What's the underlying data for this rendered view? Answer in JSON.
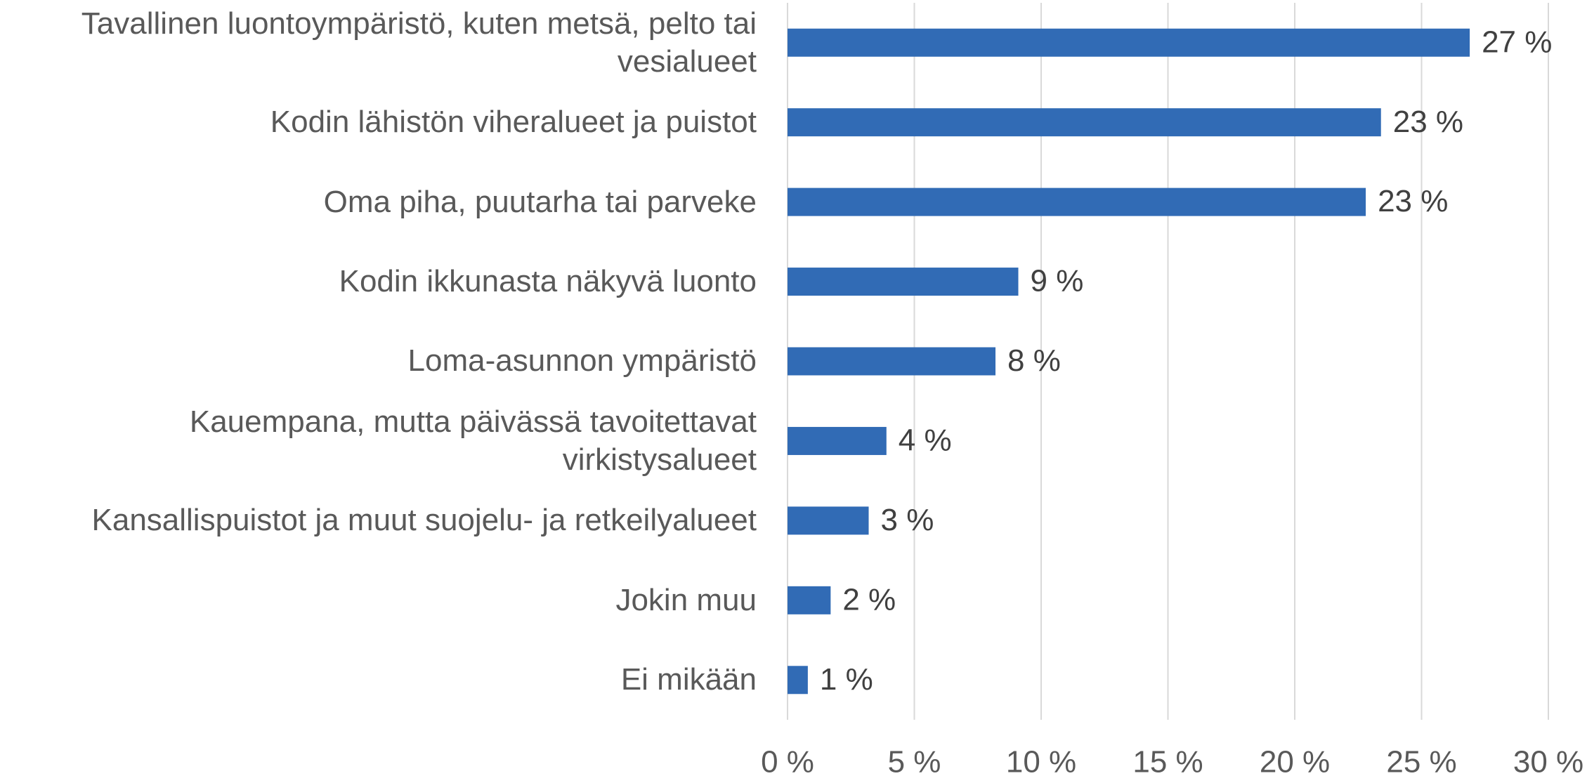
{
  "chart_data": {
    "type": "hbar",
    "categories": [
      "Tavallinen luontoympäristö, kuten metsä, pelto tai vesialueet",
      "Kodin lähistön viheralueet ja puistot",
      "Oma piha, puutarha tai parveke",
      "Kodin ikkunasta näkyvä luonto",
      "Loma-asunnon ympäristö",
      "Kauempana, mutta päivässä tavoitettavat virkistysalueet",
      "Kansallispuistot ja muut suojelu- ja retkeilyalueet",
      "Jokin muu",
      "Ei mikään"
    ],
    "values": [
      26.9,
      23.4,
      22.8,
      9.1,
      8.2,
      3.9,
      3.2,
      1.7,
      0.8
    ],
    "value_labels": [
      "27 %",
      "23 %",
      "23 %",
      "9 %",
      "8 %",
      "4 %",
      "3 %",
      "2 %",
      "1 %"
    ],
    "color": "#316bb5",
    "xlim": [
      0,
      30
    ],
    "xticks": [
      {
        "value": 0,
        "label": "0 %"
      },
      {
        "value": 5,
        "label": "5 %"
      },
      {
        "value": 10,
        "label": "10 %"
      },
      {
        "value": 15,
        "label": "15 %"
      },
      {
        "value": 20,
        "label": "20 %"
      },
      {
        "value": 25,
        "label": "25 %"
      },
      {
        "value": 30,
        "label": "30 %"
      }
    ],
    "grid": true
  }
}
